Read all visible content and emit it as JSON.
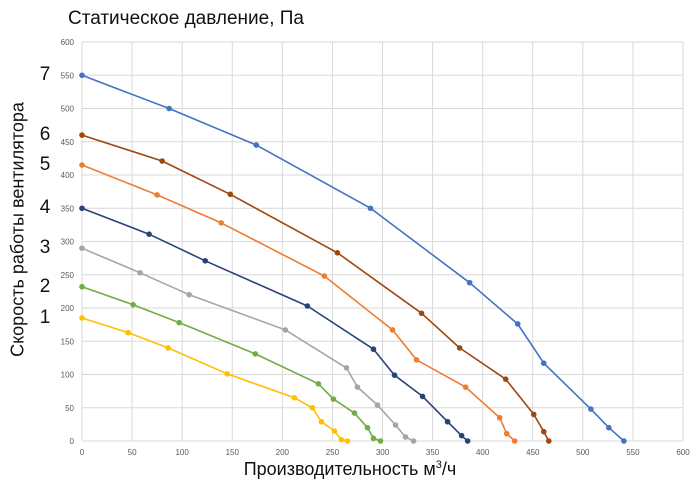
{
  "title": "Статическое давление, Па",
  "ylabel": "Скорость работы вентилятора",
  "xlabel_main": "Производительность м",
  "xlabel_sup": "3",
  "xlabel_tail": "/ч",
  "speed_labels": [
    {
      "label": "7",
      "y": 550
    },
    {
      "label": "6",
      "y": 460
    },
    {
      "label": "5",
      "y": 415
    },
    {
      "label": "4",
      "y": 350
    },
    {
      "label": "3",
      "y": 290
    },
    {
      "label": "2",
      "y": 232
    },
    {
      "label": "1",
      "y": 185
    }
  ],
  "chart_data": {
    "type": "line",
    "title": "Статическое давление, Па",
    "xlabel": "Производительность м³/ч",
    "ylabel": "Скорость работы вентилятора",
    "xlim": [
      0,
      600
    ],
    "ylim": [
      0,
      600
    ],
    "xticks": [
      0,
      50,
      100,
      150,
      200,
      250,
      300,
      350,
      400,
      450,
      500,
      550,
      600
    ],
    "yticks": [
      0,
      50,
      100,
      150,
      200,
      250,
      300,
      350,
      400,
      450,
      500,
      550,
      600
    ],
    "grid": true,
    "legend": "none",
    "series": [
      {
        "name": "7",
        "color": "#4472C4",
        "points": [
          [
            0,
            550
          ],
          [
            87,
            500
          ],
          [
            174,
            445
          ],
          [
            288,
            350
          ],
          [
            387,
            238
          ],
          [
            435,
            176
          ],
          [
            461,
            117
          ],
          [
            508,
            48
          ],
          [
            526,
            20
          ],
          [
            541,
            0
          ]
        ]
      },
      {
        "name": "6",
        "color": "#9E480E",
        "points": [
          [
            0,
            460
          ],
          [
            80,
            421
          ],
          [
            148,
            371
          ],
          [
            255,
            283
          ],
          [
            339,
            192
          ],
          [
            377,
            140
          ],
          [
            423,
            93
          ],
          [
            451,
            40
          ],
          [
            461,
            14
          ],
          [
            466,
            0
          ]
        ]
      },
      {
        "name": "5",
        "color": "#ED7D31",
        "points": [
          [
            0,
            415
          ],
          [
            75,
            370
          ],
          [
            139,
            328
          ],
          [
            242,
            248
          ],
          [
            310,
            167
          ],
          [
            334,
            122
          ],
          [
            383,
            81
          ],
          [
            417,
            35
          ],
          [
            424,
            11
          ],
          [
            432,
            0
          ]
        ]
      },
      {
        "name": "4",
        "color": "#264478",
        "points": [
          [
            0,
            350
          ],
          [
            67,
            311
          ],
          [
            123,
            271
          ],
          [
            225,
            203
          ],
          [
            291,
            138
          ],
          [
            312,
            99
          ],
          [
            340,
            67
          ],
          [
            365,
            29
          ],
          [
            379,
            8
          ],
          [
            385,
            0
          ]
        ]
      },
      {
        "name": "3",
        "color": "#A5A5A5",
        "points": [
          [
            0,
            290
          ],
          [
            58,
            253
          ],
          [
            107,
            220
          ],
          [
            203,
            167
          ],
          [
            264,
            110
          ],
          [
            275,
            81
          ],
          [
            295,
            54
          ],
          [
            313,
            24
          ],
          [
            323,
            6
          ],
          [
            331,
            0
          ]
        ]
      },
      {
        "name": "2",
        "color": "#70AD47",
        "points": [
          [
            0,
            232
          ],
          [
            51,
            205
          ],
          [
            97,
            178
          ],
          [
            173,
            131
          ],
          [
            236,
            86
          ],
          [
            251,
            63
          ],
          [
            272,
            42
          ],
          [
            285,
            20
          ],
          [
            291,
            4
          ],
          [
            298,
            0
          ]
        ]
      },
      {
        "name": "1",
        "color": "#FFC000",
        "points": [
          [
            0,
            185
          ],
          [
            46,
            163
          ],
          [
            86,
            140
          ],
          [
            145,
            101
          ],
          [
            212,
            65
          ],
          [
            230,
            50
          ],
          [
            239,
            29
          ],
          [
            252,
            15
          ],
          [
            259,
            2
          ],
          [
            265,
            0
          ]
        ]
      }
    ]
  }
}
